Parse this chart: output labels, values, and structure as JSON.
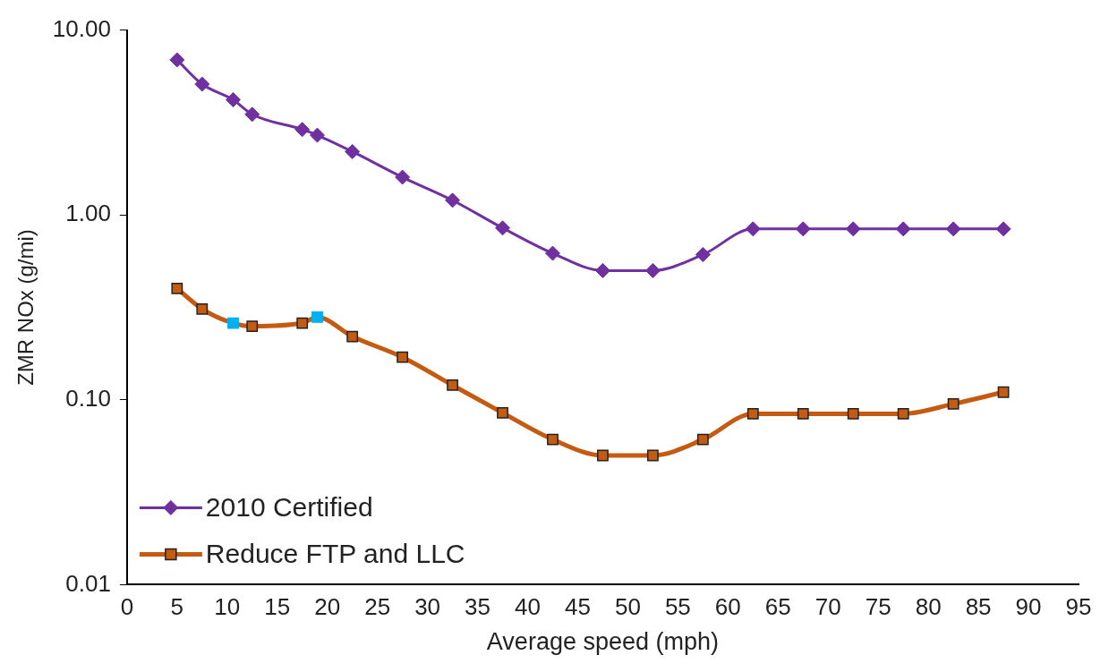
{
  "chart_data": {
    "type": "line",
    "xlabel": "Average speed (mph)",
    "ylabel": "ZMR NOx (g/mi)",
    "x": [
      5,
      7.5,
      10.6,
      12.5,
      17.5,
      19,
      22.5,
      27.5,
      32.5,
      37.5,
      42.5,
      47.5,
      52.5,
      57.5,
      62.5,
      67.5,
      72.5,
      77.5,
      82.5,
      87.5
    ],
    "series": [
      {
        "name": "2010 Certified",
        "color": "#7030a0",
        "marker": "diamond",
        "values": [
          6.9,
          5.1,
          4.2,
          3.5,
          2.9,
          2.7,
          2.2,
          1.6,
          1.2,
          0.85,
          0.62,
          0.5,
          0.5,
          0.61,
          0.84,
          0.84,
          0.84,
          0.84,
          0.84,
          0.84
        ]
      },
      {
        "name": "Reduce FTP and LLC",
        "color": "#c55a11",
        "marker": "square",
        "colors": [
          "#c55a11",
          "#c55a11",
          "#00b0f0",
          "#c55a11",
          "#c55a11",
          "#00b0f0",
          "#c55a11",
          "#c55a11",
          "#c55a11",
          "#c55a11",
          "#c55a11",
          "#c55a11",
          "#c55a11",
          "#c55a11",
          "#c55a11",
          "#c55a11",
          "#c55a11",
          "#c55a11",
          "#c55a11",
          "#c55a11"
        ],
        "values": [
          0.4,
          0.31,
          0.26,
          0.25,
          0.26,
          0.28,
          0.22,
          0.17,
          0.12,
          0.085,
          0.061,
          0.05,
          0.05,
          0.061,
          0.084,
          0.084,
          0.084,
          0.084,
          0.095,
          0.11
        ]
      }
    ],
    "log": "y",
    "xlim": [
      0,
      95
    ],
    "xticks": [
      0,
      5,
      10,
      15,
      20,
      25,
      30,
      35,
      40,
      45,
      50,
      55,
      60,
      65,
      70,
      75,
      80,
      85,
      90,
      95
    ],
    "ylim": [
      0.01,
      10
    ],
    "yticks": [
      {
        "value": 0.01,
        "label": "0.01"
      },
      {
        "value": 0.1,
        "label": "0.10"
      },
      {
        "value": 1,
        "label": "1.00"
      },
      {
        "value": 10,
        "label": "10.00"
      }
    ],
    "grid": false,
    "legend": "bottom left",
    "line_style": "solid"
  }
}
